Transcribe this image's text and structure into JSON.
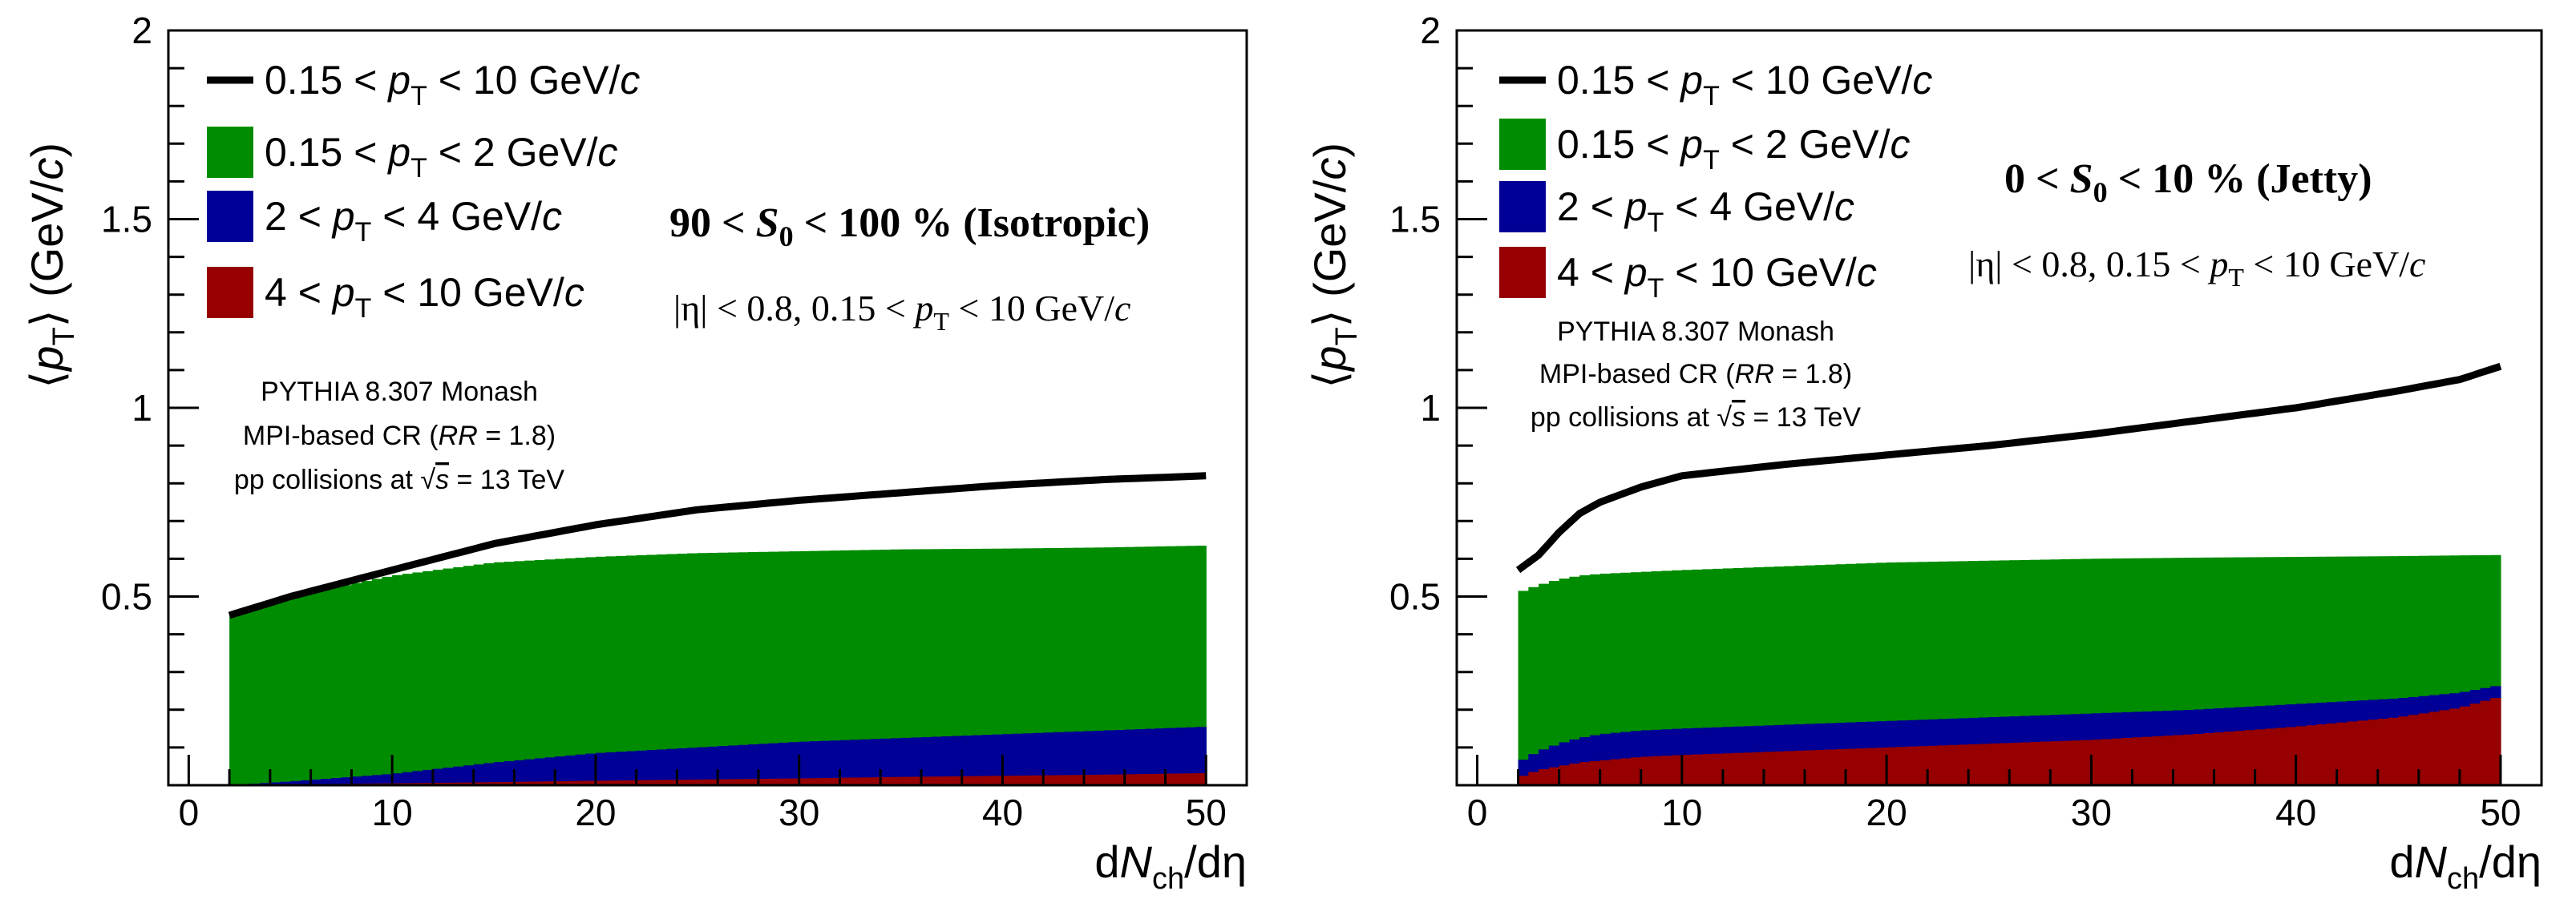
{
  "colors": {
    "all": "#000000",
    "low": "#008C00",
    "mid": "#000096",
    "high": "#960000"
  },
  "info": {
    "generator": "PYTHIA 8.307 Monash",
    "cr_prefix": "MPI-based CR (",
    "cr_rr": "RR",
    "cr_suffix": " = 1.8)",
    "collision_prefix": "pp collisions at ",
    "collision_s": "s",
    "collision_suffix": " = 13 TeV"
  },
  "chart_data": [
    {
      "type": "area",
      "title": "90 < S0 < 100 % (Isotropic)",
      "title_parts": {
        "pre": "90 <  ",
        "var": "S",
        "sub": "0",
        "post": " < 100 % (Isotropic)"
      },
      "subtitle": "|η| < 0.8, 0.15 < pT < 10 GeV/c",
      "subtitle_parts": {
        "a": "|η| < 0.8, 0.15 < ",
        "var": "p",
        "sub": "T",
        "b": " < 10  GeV/",
        "c": "c"
      },
      "xlabel": "dNch/dη",
      "ylabel": "⟨pT⟩ (GeV/c)",
      "xlim": [
        -1,
        52
      ],
      "ylim": [
        0,
        2
      ],
      "xticks": [
        "0",
        "10",
        "20",
        "30",
        "40",
        "50"
      ],
      "yticks": [
        "0.5",
        "1",
        "1.5",
        "2"
      ],
      "legend": {
        "placement": "top-left",
        "entries": [
          {
            "key": "all",
            "pre": "0.15 < ",
            "var": "p",
            "sub": "T",
            "post": " < 10 GeV/",
            "unit": "c"
          },
          {
            "key": "low",
            "pre": "0.15 < ",
            "var": "p",
            "sub": "T",
            "post": " < 2 GeV/",
            "unit": "c"
          },
          {
            "key": "mid",
            "pre": "2 < ",
            "var": "p",
            "sub": "T",
            "post": " < 4 GeV/",
            "unit": "c"
          },
          {
            "key": "high",
            "pre": "4 < ",
            "var": "p",
            "sub": "T",
            "post": " < 10 GeV/",
            "unit": "c"
          }
        ]
      },
      "x": [
        2,
        5,
        10,
        15,
        20,
        25,
        30,
        35,
        40,
        45,
        50
      ],
      "series": [
        {
          "key": "all",
          "name": "0.15 < pT < 10 GeV/c",
          "style": "line",
          "values": [
            0.45,
            0.5,
            0.57,
            0.64,
            0.69,
            0.73,
            0.755,
            0.775,
            0.795,
            0.81,
            0.82
          ]
        },
        {
          "key": "low",
          "name": "0.15 < pT < 2 GeV/c",
          "style": "fill",
          "values": [
            0.445,
            0.5,
            0.555,
            0.59,
            0.605,
            0.615,
            0.62,
            0.625,
            0.627,
            0.63,
            0.635
          ]
        },
        {
          "key": "mid",
          "name": "2 < pT < 4 GeV/c",
          "style": "fill",
          "values": [
            0.0,
            0.01,
            0.03,
            0.06,
            0.085,
            0.1,
            0.115,
            0.125,
            0.135,
            0.145,
            0.155
          ]
        },
        {
          "key": "high",
          "name": "4 < pT < 10 GeV/c",
          "style": "fill",
          "values": [
            0.0,
            0.002,
            0.005,
            0.008,
            0.012,
            0.015,
            0.018,
            0.022,
            0.025,
            0.028,
            0.032
          ]
        }
      ]
    },
    {
      "type": "area",
      "title": "0 < S0 < 10 % (Jetty)",
      "title_parts": {
        "pre": "0 <  ",
        "var": "S",
        "sub": "0",
        "post": " < 10 % (Jetty)"
      },
      "subtitle": "|η| < 0.8, 0.15 < pT < 10 GeV/c",
      "subtitle_parts": {
        "a": "|η| < 0.8, 0.15 < ",
        "var": "p",
        "sub": "T",
        "b": " < 10  GeV/",
        "c": "c"
      },
      "xlabel": "dNch/dη",
      "ylabel": "⟨pT⟩ (GeV/c)",
      "xlim": [
        -1,
        52
      ],
      "ylim": [
        0,
        2
      ],
      "xticks": [
        "0",
        "10",
        "20",
        "30",
        "40",
        "50"
      ],
      "yticks": [
        "0.5",
        "1",
        "1.5",
        "2"
      ],
      "legend": {
        "placement": "top-left",
        "entries": [
          {
            "key": "all",
            "pre": "0.15 < ",
            "var": "p",
            "sub": "T",
            "post": " < 10 GeV/",
            "unit": "c"
          },
          {
            "key": "low",
            "pre": "0.15 < ",
            "var": "p",
            "sub": "T",
            "post": " < 2 GeV/",
            "unit": "c"
          },
          {
            "key": "mid",
            "pre": "2 < ",
            "var": "p",
            "sub": "T",
            "post": " < 4 GeV/",
            "unit": "c"
          },
          {
            "key": "high",
            "pre": "4 < ",
            "var": "p",
            "sub": "T",
            "post": " < 10 GeV/",
            "unit": "c"
          }
        ]
      },
      "x": [
        2,
        3,
        4,
        5,
        6,
        8,
        10,
        15,
        20,
        25,
        30,
        35,
        40,
        45,
        48,
        50
      ],
      "series": [
        {
          "key": "all",
          "name": "0.15 < pT < 10 GeV/c",
          "style": "line",
          "values": [
            0.57,
            0.61,
            0.67,
            0.72,
            0.75,
            0.79,
            0.82,
            0.85,
            0.875,
            0.9,
            0.93,
            0.965,
            1.0,
            1.045,
            1.075,
            1.11
          ]
        },
        {
          "key": "low",
          "name": "0.15 < pT < 2 GeV/c",
          "style": "fill",
          "values": [
            0.51,
            0.53,
            0.545,
            0.555,
            0.56,
            0.565,
            0.57,
            0.58,
            0.59,
            0.595,
            0.6,
            0.603,
            0.605,
            0.607,
            0.609,
            0.61
          ]
        },
        {
          "key": "mid",
          "name": "2 < pT < 4 GeV/c",
          "style": "fill",
          "values": [
            0.06,
            0.09,
            0.11,
            0.125,
            0.135,
            0.145,
            0.15,
            0.16,
            0.17,
            0.18,
            0.19,
            0.2,
            0.215,
            0.23,
            0.245,
            0.265
          ]
        },
        {
          "key": "high",
          "name": "4 < pT < 10 GeV/c",
          "style": "fill",
          "values": [
            0.02,
            0.04,
            0.05,
            0.06,
            0.065,
            0.075,
            0.08,
            0.09,
            0.1,
            0.11,
            0.12,
            0.135,
            0.155,
            0.18,
            0.205,
            0.235
          ]
        }
      ]
    }
  ]
}
